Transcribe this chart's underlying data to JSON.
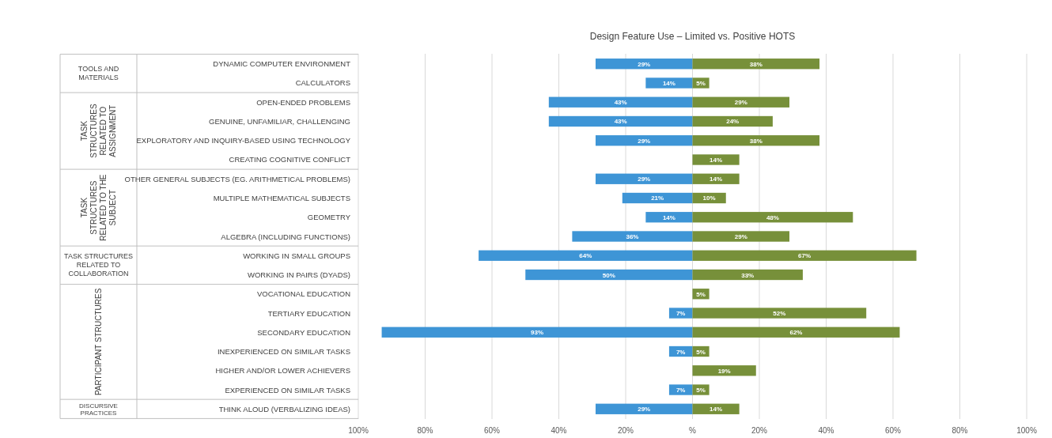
{
  "chart_data": {
    "type": "bar",
    "orientation": "horizontal",
    "title": "Design Feature Use – Limited vs. Positive HOTS",
    "categories": [
      "DYNAMIC COMPUTER ENVIRONMENT",
      "CALCULATORS",
      "OPEN-ENDED PROBLEMS",
      "GENUINE, UNFAMILIAR, CHALLENGING",
      "EXPLORATORY AND INQUIRY-BASED USING TECHNOLOGY",
      "CREATING COGNITIVE CONFLICT",
      "OTHER GENERAL SUBJECTS (EG. ARITHMETICAL PROBLEMS)",
      "MULTIPLE MATHEMATICAL SUBJECTS",
      "GEOMETRY",
      "ALGEBRA (INCLUDING FUNCTIONS)",
      "WORKING IN SMALL GROUPS",
      "WORKING IN PAIRS (DYADS)",
      "VOCATIONAL EDUCATION",
      "TERTIARY EDUCATION",
      "SECONDARY EDUCATION",
      "INEXPERIENCED ON SIMILAR TASKS",
      "HIGHER AND/OR LOWER ACHIEVERS",
      "EXPERIENCED ON SIMILAR TASKS",
      "THINK ALOUD (VERBALIZING IDEAS)"
    ],
    "series": [
      {
        "color": "#3e95d6",
        "values": [
          29,
          14,
          43,
          43,
          29,
          null,
          29,
          21,
          14,
          36,
          64,
          50,
          null,
          7,
          93,
          7,
          null,
          7,
          29
        ],
        "base": [
          -29,
          -14,
          -43,
          -43,
          -29,
          null,
          -29,
          -21,
          -14,
          -36,
          -64,
          -50,
          null,
          -7,
          -93,
          -7,
          null,
          -7,
          -29
        ],
        "value_labels": [
          "29%",
          "14%",
          "43%",
          "43%",
          "29%",
          null,
          "29%",
          "21%",
          "14%",
          "36%",
          "64%",
          "50%",
          null,
          "7%",
          "93%",
          "7%",
          null,
          "7%",
          "29%"
        ]
      },
      {
        "color": "#77903a",
        "values": [
          38,
          5,
          29,
          24,
          38,
          14,
          14,
          10,
          48,
          29,
          67,
          33,
          5,
          52,
          62,
          5,
          19,
          5,
          14
        ],
        "value_labels": [
          "38%",
          "5%",
          "29%",
          "24%",
          "38%",
          "14%",
          "14%",
          "10%",
          "48%",
          "29%",
          "67%",
          "33%",
          "5%",
          "52%",
          "62%",
          "5%",
          "19%",
          "5%",
          "14%"
        ]
      }
    ],
    "xlim": [
      -100,
      100
    ],
    "xticks": [
      {
        "value": -100,
        "label": "100%"
      },
      {
        "value": -80,
        "label": "80%"
      },
      {
        "value": -60,
        "label": "60%"
      },
      {
        "value": -40,
        "label": "40%"
      },
      {
        "value": -20,
        "label": "20%"
      },
      {
        "value": 0,
        "label": "%"
      },
      {
        "value": 20,
        "label": "20%"
      },
      {
        "value": 40,
        "label": "40%"
      },
      {
        "value": 60,
        "label": "60%"
      },
      {
        "value": 80,
        "label": "80%"
      },
      {
        "value": 100,
        "label": "100%"
      }
    ],
    "grid": "x",
    "annotations": [
      "TOOLS AND MATERIALS",
      "TASK STRUCTURES RELATED TO ASSIGNMENT",
      "TASK STRUCTURES RELATED TO THE SUBJECT",
      "TASK STRUCTURES RELATED TO COLLABORATION",
      "PARTICIPANT STRUCTURES",
      "DISCURSIVE PRACTICES"
    ]
  }
}
